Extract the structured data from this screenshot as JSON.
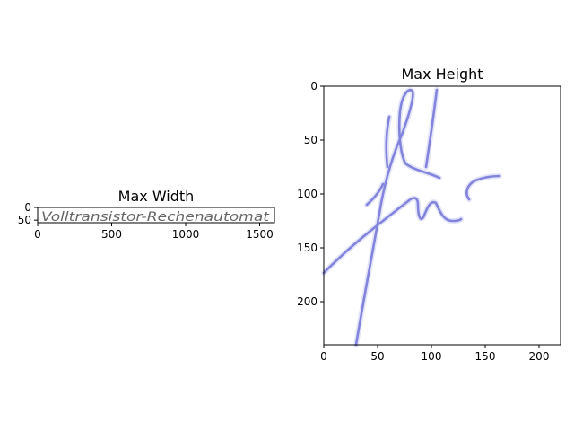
{
  "chart_data": [
    {
      "type": "image",
      "title": "Max Width",
      "content": "handwritten text image",
      "handwriting_text": "Volltransistor-Rechenautomat",
      "ink_color": "#5a64d8",
      "xlim": [
        0,
        1600
      ],
      "ylim": [
        60,
        0
      ],
      "image_size": [
        1600,
        60
      ],
      "xticks": [
        0,
        500,
        1000,
        1500
      ],
      "yticks": [
        0,
        50
      ]
    },
    {
      "type": "image",
      "title": "Max Height",
      "content": "handwritten signature image",
      "ink_color": "#5a5ad2",
      "xlim": [
        0,
        220
      ],
      "ylim": [
        240,
        0
      ],
      "image_size": [
        220,
        240
      ],
      "xticks": [
        0,
        50,
        100,
        150,
        200
      ],
      "yticks": [
        0,
        50,
        100,
        150,
        200
      ]
    }
  ]
}
